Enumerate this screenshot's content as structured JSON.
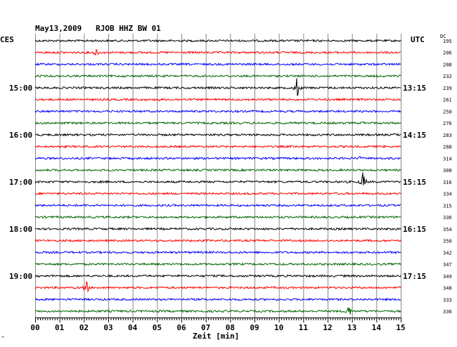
{
  "header": {
    "title": "May13,2009   RJOB HHZ BW 01",
    "tz_left": "CES",
    "tz_right": "UTC",
    "dc_label": "DC"
  },
  "footer": {
    "corner_mark": "^"
  },
  "chart_data": {
    "type": "line",
    "title": "May13,2009   RJOB HHZ BW 01",
    "xlabel": "Zeit [min]",
    "ylabel": "",
    "xlim": [
      0,
      15
    ],
    "x_ticks": [
      "00",
      "01",
      "02",
      "03",
      "04",
      "05",
      "06",
      "07",
      "08",
      "09",
      "10",
      "11",
      "12",
      "13",
      "14",
      "15"
    ],
    "trace_colors": [
      "#000000",
      "#ff0000",
      "#0000ff",
      "#006600"
    ],
    "grid": true,
    "left_time_labels": [
      {
        "trace": 4,
        "label": "15:00"
      },
      {
        "trace": 8,
        "label": "16:00"
      },
      {
        "trace": 12,
        "label": "17:00"
      },
      {
        "trace": 16,
        "label": "18:00"
      },
      {
        "trace": 20,
        "label": "19:00"
      }
    ],
    "right_time_labels": [
      {
        "trace": 4,
        "label": "13:15"
      },
      {
        "trace": 8,
        "label": "14:15"
      },
      {
        "trace": 12,
        "label": "15:15"
      },
      {
        "trace": 16,
        "label": "16:15"
      },
      {
        "trace": 20,
        "label": "17:15"
      }
    ],
    "dc_values": [
      195,
      206,
      208,
      232,
      239,
      261,
      250,
      276,
      283,
      288,
      314,
      308,
      316,
      334,
      315,
      336,
      354,
      350,
      342,
      347,
      349,
      348,
      333,
      336
    ],
    "events": [
      {
        "trace": 1,
        "minute": 2.5,
        "amplitude": 9
      },
      {
        "trace": 4,
        "minute": 10.75,
        "amplitude": 18
      },
      {
        "trace": 5,
        "minute": 5.1,
        "amplitude": 3
      },
      {
        "trace": 7,
        "minute": 13.5,
        "amplitude": 5
      },
      {
        "trace": 8,
        "minute": 14.7,
        "amplitude": 4
      },
      {
        "trace": 10,
        "minute": 13.3,
        "amplitude": 4
      },
      {
        "trace": 12,
        "minute": 13.45,
        "amplitude": 16
      },
      {
        "trace": 21,
        "minute": 2.1,
        "amplitude": 12
      },
      {
        "trace": 23,
        "minute": 12.85,
        "amplitude": 12
      }
    ]
  }
}
